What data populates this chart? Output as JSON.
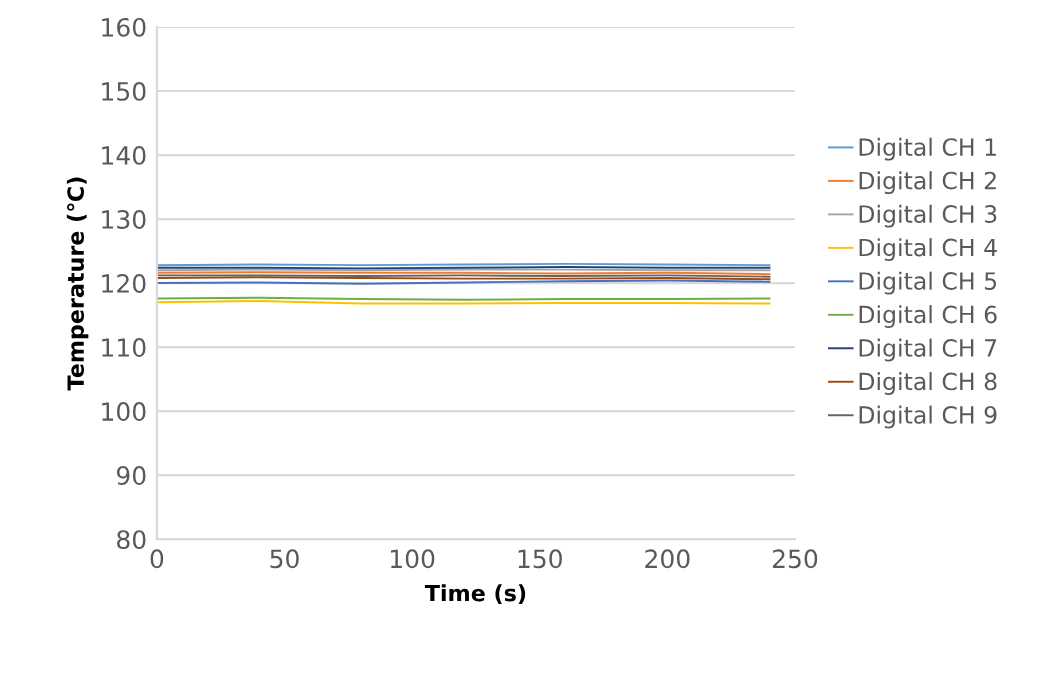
{
  "chart_data": {
    "type": "line",
    "xlabel": "Time (s)",
    "ylabel": "Temperature (℃)",
    "x": [
      0,
      40,
      80,
      120,
      160,
      200,
      240
    ],
    "xlim": [
      0,
      250
    ],
    "xticks": [
      0,
      50,
      100,
      150,
      200,
      250
    ],
    "ylim": [
      80,
      160
    ],
    "yticks": [
      80,
      90,
      100,
      110,
      120,
      130,
      140,
      150,
      160
    ],
    "grid": "y",
    "legend": "right",
    "marker": "none",
    "line_style": "solid",
    "series": [
      {
        "name": "Digital CH 1",
        "color": "#5b9bd5",
        "values": [
          122.8,
          122.9,
          122.8,
          122.9,
          123.0,
          122.9,
          122.8
        ]
      },
      {
        "name": "Digital CH 2",
        "color": "#ed7d31",
        "values": [
          121.6,
          121.7,
          121.6,
          121.6,
          121.5,
          121.6,
          121.4
        ]
      },
      {
        "name": "Digital CH 3",
        "color": "#a5a5a5",
        "values": [
          122.0,
          122.1,
          122.0,
          122.1,
          122.1,
          122.0,
          122.0
        ]
      },
      {
        "name": "Digital CH 4",
        "color": "#ffc000",
        "values": [
          117.0,
          117.2,
          116.8,
          116.8,
          116.9,
          116.9,
          116.8
        ]
      },
      {
        "name": "Digital CH 5",
        "color": "#4472c4",
        "values": [
          120.0,
          120.1,
          119.9,
          120.1,
          120.3,
          120.4,
          120.2
        ]
      },
      {
        "name": "Digital CH 6",
        "color": "#70ad47",
        "values": [
          117.6,
          117.7,
          117.5,
          117.4,
          117.5,
          117.5,
          117.6
        ]
      },
      {
        "name": "Digital CH 7",
        "color": "#264478",
        "values": [
          122.4,
          122.4,
          122.3,
          122.4,
          122.5,
          122.4,
          122.4
        ]
      },
      {
        "name": "Digital CH 8",
        "color": "#9e480e",
        "values": [
          120.8,
          120.9,
          120.8,
          120.7,
          120.7,
          120.8,
          120.6
        ]
      },
      {
        "name": "Digital CH 9",
        "color": "#636363",
        "values": [
          121.2,
          121.2,
          121.1,
          121.2,
          121.1,
          121.2,
          121.0
        ]
      }
    ]
  }
}
